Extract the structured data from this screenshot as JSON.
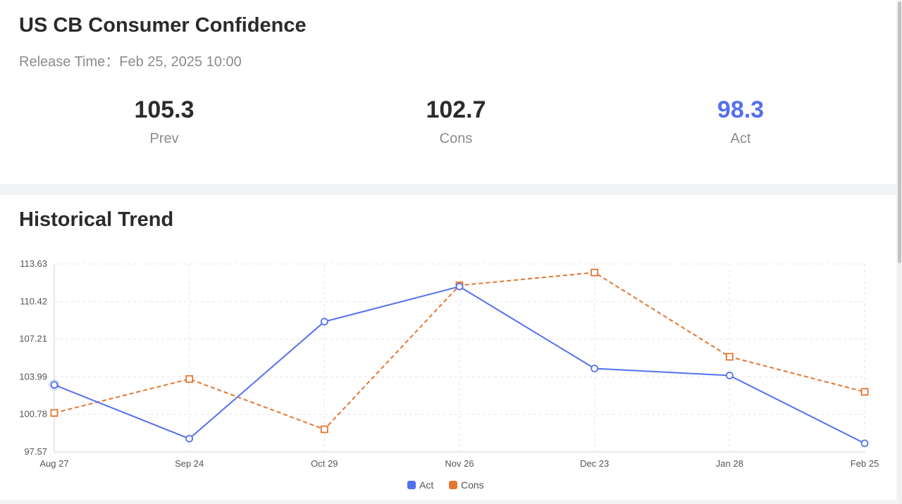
{
  "header": {
    "title": "US CB Consumer Confidence",
    "release_label": "Release Time：",
    "release_time": "Feb 25, 2025 10:00"
  },
  "stats": {
    "prev": {
      "value": "105.3",
      "label": "Prev"
    },
    "cons": {
      "value": "102.7",
      "label": "Cons"
    },
    "act": {
      "value": "98.3",
      "label": "Act"
    }
  },
  "section": {
    "title": "Historical Trend"
  },
  "colors": {
    "act": "#5470f0",
    "cons": "#e5752f",
    "act_value": "#5470f0"
  },
  "chart_data": {
    "type": "line",
    "categories": [
      "Aug 27",
      "Sep 24",
      "Oct 29",
      "Nov 26",
      "Dec 23",
      "Jan 28",
      "Feb 25"
    ],
    "series": [
      {
        "name": "Act",
        "values": [
          103.3,
          98.7,
          108.7,
          111.7,
          104.7,
          104.1,
          98.3
        ],
        "style": "solid",
        "marker": "circle"
      },
      {
        "name": "Cons",
        "values": [
          100.9,
          103.8,
          99.5,
          111.8,
          112.9,
          105.7,
          102.7
        ],
        "style": "dashed",
        "marker": "square"
      }
    ],
    "yticks": [
      "97.57",
      "100.78",
      "103.99",
      "107.21",
      "110.42",
      "113.63"
    ],
    "ylim": [
      97.57,
      113.63
    ],
    "grid": true,
    "legend": "bottom-center"
  }
}
